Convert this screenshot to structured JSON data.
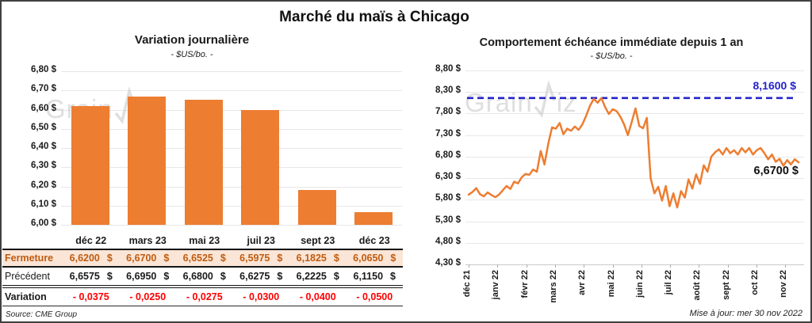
{
  "page": {
    "title": "Marché du maïs à Chicago"
  },
  "watermark": {
    "prefix": "Grain",
    "suffix": "iz"
  },
  "footer": {
    "source": "Source: CME Group",
    "updated": "Mise à jour: mer 30 nov 2022"
  },
  "colors": {
    "accent_orange": "#ED7D31",
    "fermeture_bg": "#FBE5D6",
    "fermeture_text": "#BF5B0F",
    "variation_red": "#FF0000",
    "target_blue": "#2424CB",
    "gridline": "#E7E7E7",
    "watermark_gray": "#C6C6C6"
  },
  "table": {
    "columns": [
      "déc 22",
      "mars 23",
      "mai 23",
      "juil 23",
      "sept 23",
      "déc 23"
    ],
    "currency": "$",
    "rows": [
      {
        "label": "Fermeture",
        "values": [
          "6,6200",
          "6,6700",
          "6,6525",
          "6,5975",
          "6,1825",
          "6,0650"
        ]
      },
      {
        "label": "Précédent",
        "values": [
          "6,6575",
          "6,6950",
          "6,6800",
          "6,6275",
          "6,2225",
          "6,1150"
        ]
      },
      {
        "label": "Variation",
        "values": [
          "- 0,0375",
          "- 0,0250",
          "- 0,0275",
          "- 0,0300",
          "- 0,0400",
          "- 0,0500"
        ]
      }
    ]
  },
  "chart_data": [
    {
      "type": "bar",
      "title": "Variation  journalière",
      "subtitle": "- $US/bo. -",
      "categories": [
        "déc 22",
        "mars 23",
        "mai 23",
        "juil 23",
        "sept 23",
        "déc 23"
      ],
      "values": [
        6.62,
        6.67,
        6.6525,
        6.5975,
        6.1825,
        6.065
      ],
      "ylim": [
        6.0,
        6.8
      ],
      "ytick_values": [
        6.8,
        6.7,
        6.6,
        6.5,
        6.4,
        6.3,
        6.2,
        6.1,
        6.0
      ],
      "ytick_labels": [
        "6,80 $",
        "6,70 $",
        "6,60 $",
        "6,50 $",
        "6,40 $",
        "6,30 $",
        "6,20 $",
        "6,10 $",
        "6,00 $"
      ],
      "grid": true,
      "legend": false,
      "bar_color": "#ED7D31"
    },
    {
      "type": "line",
      "title": "Comportement  échéance  immédiate  depuis  1 an",
      "subtitle": "- $US/bo. -",
      "x_labels": [
        "déc 21",
        "janv 22",
        "févr 22",
        "mars 22",
        "avr 22",
        "mai 22",
        "juin 22",
        "juil 22",
        "août 22",
        "sept 22",
        "oct 22",
        "nov 22"
      ],
      "values": [
        5.92,
        5.98,
        6.07,
        5.93,
        5.88,
        5.97,
        5.91,
        5.86,
        5.92,
        6.02,
        6.12,
        6.05,
        6.22,
        6.18,
        6.32,
        6.4,
        6.38,
        6.5,
        6.45,
        6.93,
        6.62,
        7.1,
        7.48,
        7.45,
        7.58,
        7.32,
        7.45,
        7.4,
        7.5,
        7.42,
        7.55,
        7.75,
        7.98,
        8.14,
        8.05,
        8.16,
        7.95,
        7.79,
        7.9,
        7.86,
        7.73,
        7.55,
        7.3,
        7.6,
        7.92,
        7.51,
        7.46,
        7.7,
        6.3,
        5.95,
        6.1,
        5.78,
        6.12,
        5.65,
        5.95,
        5.62,
        6.0,
        5.85,
        6.27,
        6.06,
        6.39,
        6.17,
        6.6,
        6.45,
        6.8,
        6.9,
        6.97,
        6.85,
        7.0,
        6.88,
        6.95,
        6.85,
        7.0,
        6.9,
        7.0,
        6.85,
        6.95,
        7.0,
        6.88,
        6.74,
        6.85,
        6.68,
        6.75,
        6.59,
        6.72,
        6.62,
        6.74,
        6.67
      ],
      "ylim": [
        4.3,
        8.8
      ],
      "ytick_values": [
        8.8,
        8.3,
        7.8,
        7.3,
        6.8,
        6.3,
        5.8,
        5.3,
        4.8,
        4.3
      ],
      "ytick_labels": [
        "8,80 $",
        "8,30 $",
        "7,80 $",
        "7,30 $",
        "6,80 $",
        "6,30 $",
        "5,80 $",
        "5,30 $",
        "4,80 $",
        "4,30 $"
      ],
      "grid": true,
      "legend": false,
      "line_color": "#ED7D31",
      "reference_line": {
        "value": 8.16,
        "label": "8,1600 $",
        "color": "#2424CB"
      },
      "end_label": {
        "value": 6.67,
        "text": "6,6700 $"
      }
    }
  ]
}
